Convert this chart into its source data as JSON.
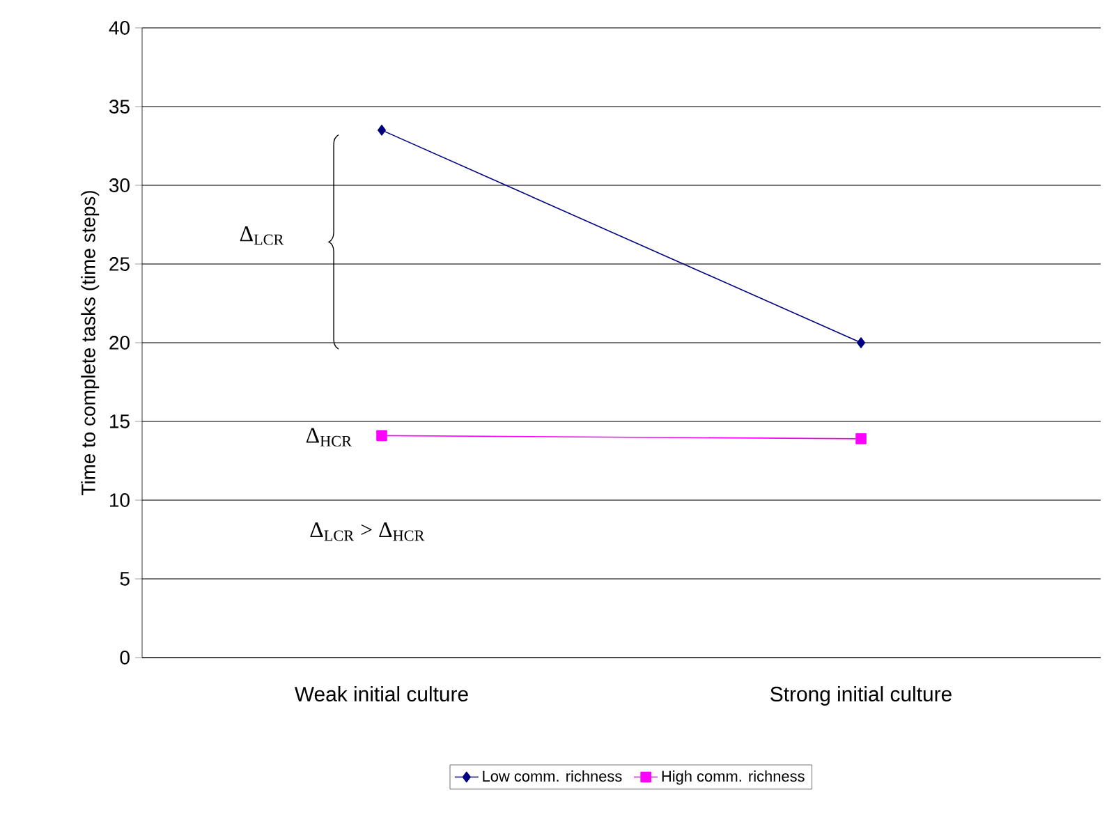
{
  "chart_data": {
    "type": "line",
    "ylabel": "Time to complete tasks (time steps)",
    "categories": [
      "Weak initial culture",
      "Strong initial culture"
    ],
    "series": [
      {
        "name": "Low comm. richness",
        "color": "#000080",
        "values": [
          33.5,
          20
        ],
        "marker": "diamond"
      },
      {
        "name": "High comm. richness",
        "color": "#ff00ff",
        "values": [
          14.1,
          13.9
        ],
        "marker": "square"
      }
    ],
    "ylim": [
      0,
      40
    ],
    "yticks": [
      0,
      5,
      10,
      15,
      20,
      25,
      30,
      35,
      40
    ],
    "grid": "y",
    "legend": "bottom",
    "line_style": "solid",
    "annotations": [
      "Δ$_{LCR}$",
      "Δ$_{HCR}$",
      "Δ$_{LCR}$ > Δ$_{HCR}$"
    ]
  }
}
